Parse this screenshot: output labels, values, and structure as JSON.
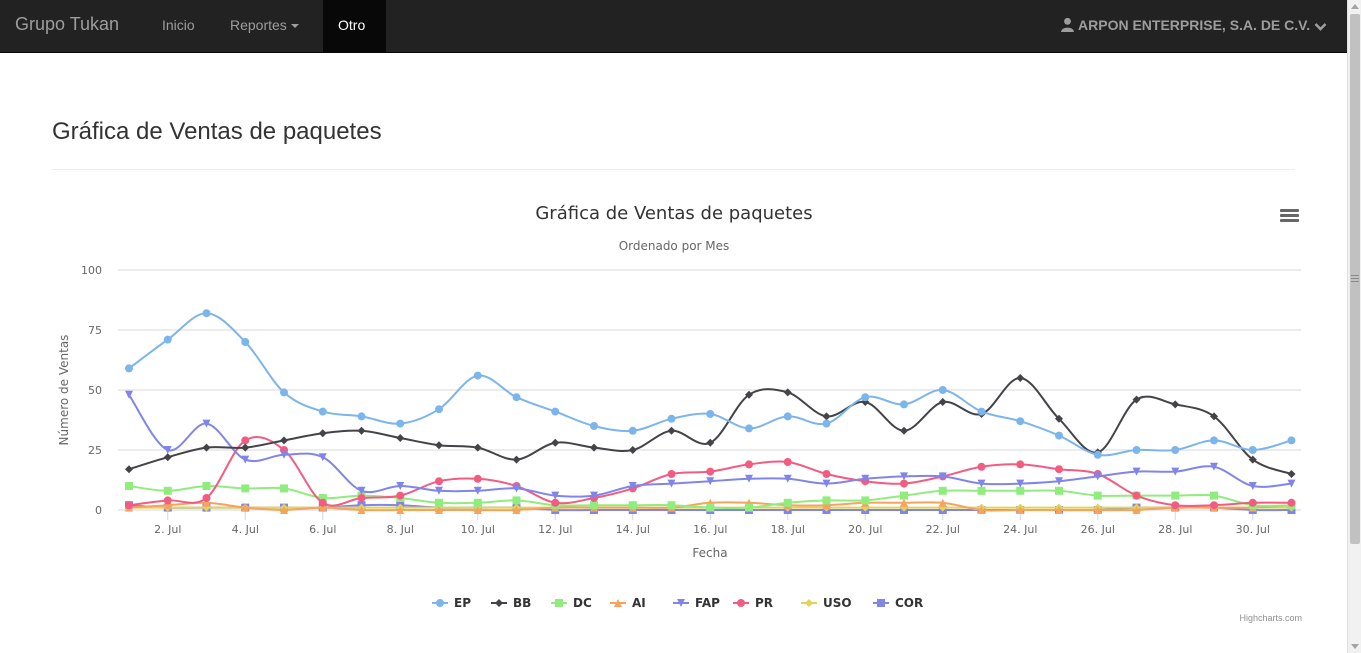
{
  "navbar": {
    "brand": "Grupo Tukan",
    "items": [
      {
        "label": "Inicio"
      },
      {
        "label": "Reportes"
      },
      {
        "label": "Otro"
      }
    ],
    "user": "ARPON ENTERPRISE, S.A. DE C.V."
  },
  "page": {
    "title": "Gráfica de Ventas de paquetes"
  },
  "colors": {
    "navbar_bg": "#222222",
    "EP": "#7cb5ec",
    "BB": "#434348",
    "DC": "#90ed7d",
    "AI": "#f7a35c",
    "FAP": "#8085e9",
    "PR": "#f15c80",
    "USO": "#e4d354",
    "COR": "#8085e8"
  },
  "chart_data": {
    "type": "line",
    "title": "Gráfica de Ventas de paquetes",
    "subtitle": "Ordenado por Mes",
    "xlabel": "Fecha",
    "ylabel": "Número de Ventas",
    "ylim": [
      0,
      100
    ],
    "yticks": [
      "0",
      "25",
      "50",
      "75",
      "100"
    ],
    "x": [
      1,
      2,
      3,
      4,
      5,
      6,
      7,
      8,
      9,
      10,
      11,
      12,
      13,
      14,
      15,
      16,
      17,
      18,
      19,
      20,
      21,
      22,
      23,
      24,
      25,
      26,
      27,
      28,
      29,
      30,
      31
    ],
    "xticks": [
      "2. Jul",
      "4. Jul",
      "6. Jul",
      "8. Jul",
      "10. Jul",
      "12. Jul",
      "14. Jul",
      "16. Jul",
      "18. Jul",
      "20. Jul",
      "22. Jul",
      "24. Jul",
      "26. Jul",
      "28. Jul",
      "30. Jul"
    ],
    "grid": true,
    "legend": "bottom-center",
    "credits": "Highcharts.com",
    "series": [
      {
        "name": "EP",
        "marker": "circle",
        "values": [
          59,
          71,
          82,
          70,
          49,
          41,
          39,
          36,
          42,
          56,
          47,
          41,
          35,
          33,
          38,
          40,
          34,
          39,
          36,
          47,
          44,
          50,
          41,
          37,
          31,
          23,
          25,
          25,
          29,
          25,
          29
        ]
      },
      {
        "name": "BB",
        "marker": "diamond",
        "values": [
          17,
          22,
          26,
          26,
          29,
          32,
          33,
          30,
          27,
          26,
          21,
          28,
          26,
          25,
          33,
          28,
          48,
          49,
          39,
          45,
          33,
          45,
          40,
          55,
          38,
          24,
          46,
          44,
          39,
          21,
          15
        ]
      },
      {
        "name": "DC",
        "marker": "square",
        "values": [
          10,
          8,
          10,
          9,
          9,
          5,
          6,
          5,
          3,
          3,
          4,
          2,
          2,
          2,
          2,
          1,
          1,
          3,
          4,
          4,
          6,
          8,
          8,
          8,
          8,
          6,
          6,
          6,
          6,
          2,
          2
        ]
      },
      {
        "name": "AI",
        "marker": "triangle",
        "values": [
          1,
          2,
          3,
          1,
          0,
          1,
          0,
          0,
          0,
          0,
          0,
          1,
          1,
          1,
          1,
          3,
          3,
          2,
          2,
          3,
          3,
          3,
          0,
          0,
          0,
          0,
          0,
          1,
          1,
          1,
          2
        ]
      },
      {
        "name": "FAP",
        "marker": "triangle-down",
        "values": [
          48,
          25,
          36,
          21,
          23,
          22,
          8,
          10,
          8,
          8,
          9,
          6,
          6,
          10,
          11,
          12,
          13,
          13,
          11,
          13,
          14,
          14,
          11,
          11,
          12,
          14,
          16,
          16,
          18,
          10,
          11
        ]
      },
      {
        "name": "PR",
        "marker": "circle",
        "values": [
          2,
          4,
          5,
          29,
          25,
          3,
          5,
          6,
          12,
          13,
          10,
          3,
          5,
          9,
          15,
          16,
          19,
          20,
          15,
          12,
          11,
          14,
          18,
          19,
          17,
          15,
          6,
          2,
          2,
          3,
          3
        ]
      },
      {
        "name": "USO",
        "marker": "diamond",
        "values": [
          1,
          1,
          1,
          1,
          1,
          1,
          1,
          1,
          1,
          1,
          1,
          1,
          1,
          1,
          1,
          1,
          1,
          1,
          1,
          1,
          1,
          1,
          1,
          1,
          1,
          1,
          1,
          1,
          1,
          1,
          1
        ]
      },
      {
        "name": "COR",
        "marker": "square",
        "values": [
          2,
          1,
          1,
          1,
          1,
          1,
          2,
          2,
          1,
          1,
          1,
          0,
          0,
          0,
          0,
          0,
          0,
          0,
          0,
          0,
          0,
          0,
          0,
          0,
          0,
          0,
          1,
          1,
          1,
          0,
          0
        ]
      }
    ]
  }
}
